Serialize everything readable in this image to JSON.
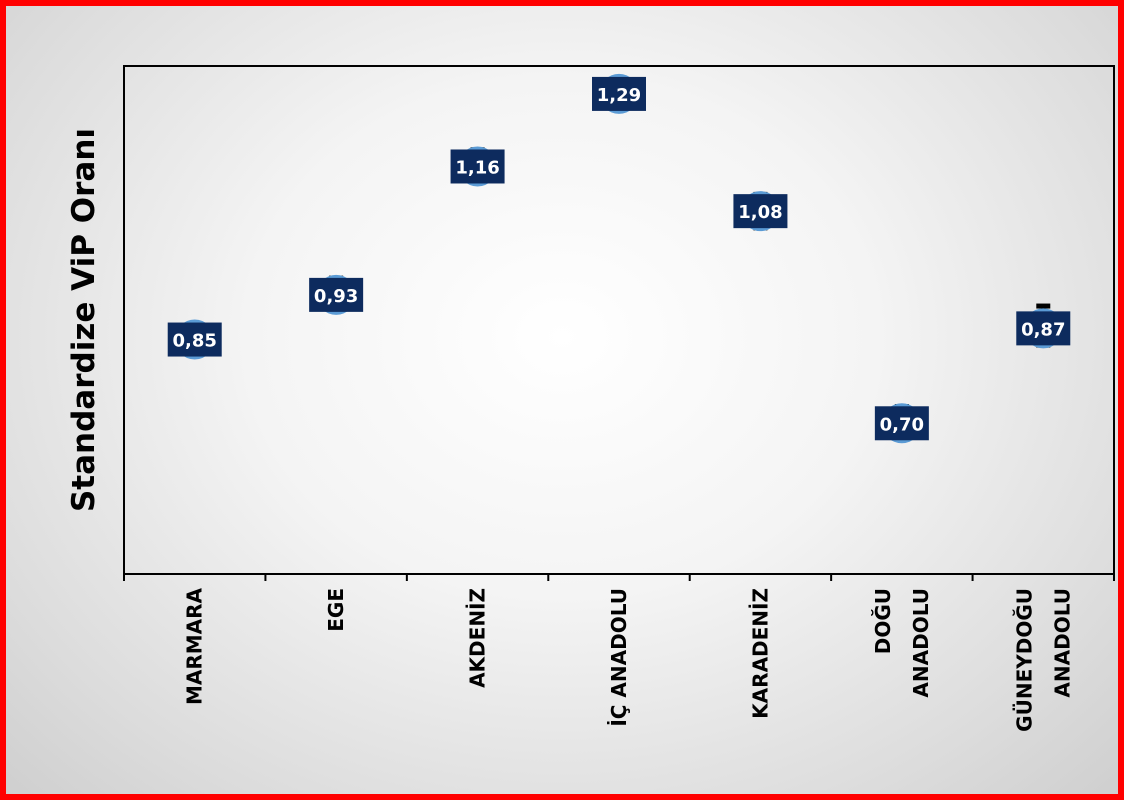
{
  "chart_data": {
    "type": "scatter",
    "title": "",
    "xlabel": "",
    "ylabel": "Standardize ViP Oranı",
    "categories": [
      "MARMARA",
      "EGE",
      "AKDENİZ",
      "İÇ ANADOLU",
      "KARADENİZ",
      "DOĞU ANADOLU",
      "GÜNEYDOĞU ANADOLU"
    ],
    "category_lines": [
      [
        "MARMARA"
      ],
      [
        "EGE"
      ],
      [
        "AKDENİZ"
      ],
      [
        "İÇ ANADOLU"
      ],
      [
        "KARADENİZ"
      ],
      [
        "DOĞU",
        "ANADOLU"
      ],
      [
        "GÜNEYDOĞU",
        "ANADOLU"
      ]
    ],
    "values": [
      0.85,
      0.93,
      1.16,
      1.29,
      1.08,
      0.7,
      0.87
    ],
    "value_labels": [
      "0,85",
      "0,93",
      "1,16",
      "1,29",
      "1,08",
      "0,70",
      "0,87"
    ],
    "error_low": [
      0.85,
      0.91,
      1.14,
      1.29,
      1.05,
      0.68,
      0.84
    ],
    "error_high": [
      0.85,
      0.96,
      1.19,
      1.29,
      1.11,
      0.73,
      0.91
    ],
    "ylim": [
      0.43,
      1.34
    ],
    "y_tick_labels_shown": false,
    "grid": false,
    "legend": "none",
    "colors": {
      "marker": "#5b9bd5",
      "label_box": "#0d2b5e",
      "label_text": "#ffffff",
      "error_bar": "#000000",
      "frame_border": "#ff0000"
    }
  }
}
